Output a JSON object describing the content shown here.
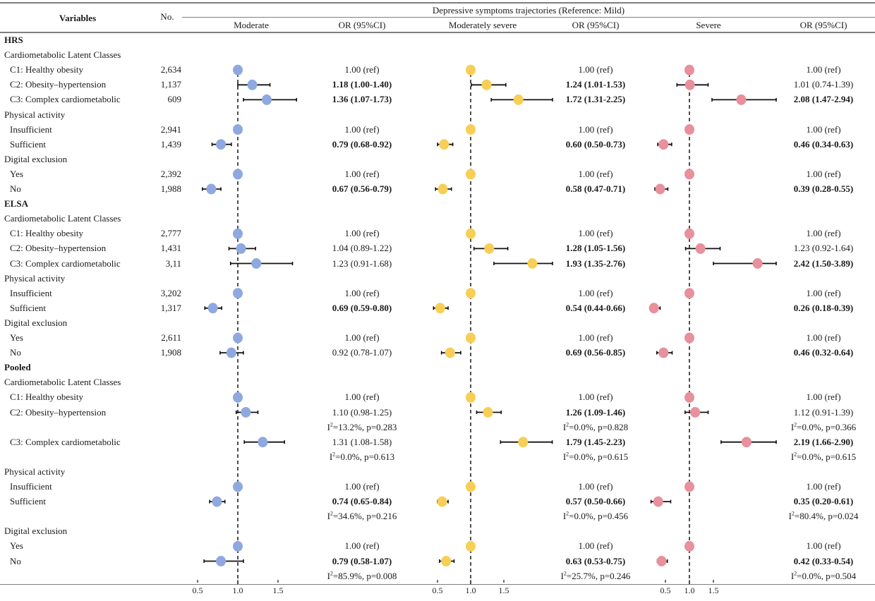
{
  "header": {
    "variables": "Variables",
    "no": "No.",
    "spanner": "Depressive symptoms trajectories (Reference: Mild)",
    "columns": [
      "Moderate",
      "OR (95%CI)",
      "Moderately severe",
      "OR (95%CI)",
      "Severe",
      "OR (95%CI)"
    ]
  },
  "colors": {
    "moderate": "#8fa9e0",
    "moderately_severe": "#f7cf56",
    "severe": "#e8909c",
    "ci": "#111111",
    "ref_line": "#222222"
  },
  "chart_data": {
    "type": "forest",
    "title": "Depressive symptoms trajectories (Reference: Mild)",
    "reference_value": 1.0,
    "panels": [
      {
        "name": "Moderate",
        "xticks": [
          "0.5",
          "1.0",
          "1.5"
        ],
        "xlim": [
          0.4,
          1.75
        ]
      },
      {
        "name": "Moderately severe",
        "xticks": [
          "0.5",
          "1.0",
          "1.5"
        ],
        "xlim": [
          0.45,
          2.2
        ]
      },
      {
        "name": "Severe",
        "xticks": [
          "0.5",
          "1.0",
          "1.5"
        ],
        "xlim": [
          0.25,
          2.8
        ]
      }
    ],
    "rows": [
      {
        "kind": "section",
        "label": "HRS"
      },
      {
        "kind": "group",
        "label": "Cardiometabolic Latent Classes"
      },
      {
        "kind": "item",
        "label": "C1: Healthy obesity",
        "n": "2,634",
        "est": [
          [
            1.0,
            1.0,
            1.0
          ],
          [
            1.0,
            1.0,
            1.0
          ],
          [
            1.0,
            1.0,
            1.0
          ]
        ],
        "or_text": [
          "1.00 (ref)",
          "1.00 (ref)",
          "1.00 (ref)"
        ],
        "bold": [
          false,
          false,
          false
        ]
      },
      {
        "kind": "item",
        "label": "C2: Obesity–hypertension",
        "n": "1,137",
        "est": [
          [
            1.18,
            1.0,
            1.4
          ],
          [
            1.24,
            1.01,
            1.53
          ],
          [
            1.01,
            0.74,
            1.39
          ]
        ],
        "or_text": [
          "1.18 (1.00-1.40)",
          "1.24 (1.01-1.53)",
          "1.01 (0.74-1.39)"
        ],
        "bold": [
          true,
          true,
          false
        ]
      },
      {
        "kind": "item",
        "label": "C3: Complex cardiometabolic",
        "n": "609",
        "est": [
          [
            1.36,
            1.07,
            1.73
          ],
          [
            1.72,
            1.31,
            2.25
          ],
          [
            2.08,
            1.47,
            2.94
          ]
        ],
        "or_text": [
          "1.36 (1.07-1.73)",
          "1.72 (1.31-2.25)",
          "2.08 (1.47-2.94)"
        ],
        "bold": [
          true,
          true,
          true
        ]
      },
      {
        "kind": "group",
        "label": "Physical activity"
      },
      {
        "kind": "item",
        "label": "Insufficient",
        "n": "2,941",
        "est": [
          [
            1.0,
            1.0,
            1.0
          ],
          [
            1.0,
            1.0,
            1.0
          ],
          [
            1.0,
            1.0,
            1.0
          ]
        ],
        "or_text": [
          "1.00 (ref)",
          "1.00 (ref)",
          "1.00 (ref)"
        ],
        "bold": [
          false,
          false,
          false
        ]
      },
      {
        "kind": "item",
        "label": "Sufficient",
        "n": "1,439",
        "est": [
          [
            0.79,
            0.68,
            0.92
          ],
          [
            0.6,
            0.5,
            0.73
          ],
          [
            0.46,
            0.34,
            0.63
          ]
        ],
        "or_text": [
          "0.79 (0.68-0.92)",
          "0.60 (0.50-0.73)",
          "0.46 (0.34-0.63)"
        ],
        "bold": [
          true,
          true,
          true
        ]
      },
      {
        "kind": "group",
        "label": "Digital exclusion"
      },
      {
        "kind": "item",
        "label": "Yes",
        "n": "2,392",
        "est": [
          [
            1.0,
            1.0,
            1.0
          ],
          [
            1.0,
            1.0,
            1.0
          ],
          [
            1.0,
            1.0,
            1.0
          ]
        ],
        "or_text": [
          "1.00 (ref)",
          "1.00 (ref)",
          "1.00 (ref)"
        ],
        "bold": [
          false,
          false,
          false
        ]
      },
      {
        "kind": "item",
        "label": "No",
        "n": "1,988",
        "est": [
          [
            0.67,
            0.56,
            0.79
          ],
          [
            0.58,
            0.47,
            0.71
          ],
          [
            0.39,
            0.28,
            0.55
          ]
        ],
        "or_text": [
          "0.67 (0.56-0.79)",
          "0.58 (0.47-0.71)",
          "0.39 (0.28-0.55)"
        ],
        "bold": [
          true,
          true,
          true
        ]
      },
      {
        "kind": "section",
        "label": "ELSA"
      },
      {
        "kind": "group",
        "label": "Cardiometabolic Latent Classes"
      },
      {
        "kind": "item",
        "label": "C1: Healthy obesity",
        "n": "2,777",
        "est": [
          [
            1.0,
            1.0,
            1.0
          ],
          [
            1.0,
            1.0,
            1.0
          ],
          [
            1.0,
            1.0,
            1.0
          ]
        ],
        "or_text": [
          "1.00 (ref)",
          "1.00 (ref)",
          "1.00 (ref)"
        ],
        "bold": [
          false,
          false,
          false
        ]
      },
      {
        "kind": "item",
        "label": "C2: Obesity–hypertension",
        "n": "1,431",
        "est": [
          [
            1.04,
            0.89,
            1.22
          ],
          [
            1.28,
            1.05,
            1.56
          ],
          [
            1.23,
            0.92,
            1.64
          ]
        ],
        "or_text": [
          "1.04 (0.89-1.22)",
          "1.28 (1.05-1.56)",
          "1.23 (0.92-1.64)"
        ],
        "bold": [
          false,
          true,
          false
        ]
      },
      {
        "kind": "item",
        "label": "C3: Complex cardiometabolic",
        "n": "3,11",
        "est": [
          [
            1.23,
            0.91,
            1.68
          ],
          [
            1.93,
            1.35,
            2.76
          ],
          [
            2.42,
            1.5,
            3.89
          ]
        ],
        "or_text": [
          "1.23 (0.91-1.68)",
          "1.93 (1.35-2.76)",
          "2.42 (1.50-3.89)"
        ],
        "bold": [
          false,
          true,
          true
        ]
      },
      {
        "kind": "group",
        "label": "Physical activity"
      },
      {
        "kind": "item",
        "label": "Insufficient",
        "n": "3,202",
        "est": [
          [
            1.0,
            1.0,
            1.0
          ],
          [
            1.0,
            1.0,
            1.0
          ],
          [
            1.0,
            1.0,
            1.0
          ]
        ],
        "or_text": [
          "1.00 (ref)",
          "1.00 (ref)",
          "1.00 (ref)"
        ],
        "bold": [
          false,
          false,
          false
        ]
      },
      {
        "kind": "item",
        "label": "Sufficient",
        "n": "1,317",
        "est": [
          [
            0.69,
            0.59,
            0.8
          ],
          [
            0.54,
            0.44,
            0.66
          ],
          [
            0.26,
            0.18,
            0.39
          ]
        ],
        "or_text": [
          "0.69 (0.59-0.80)",
          "0.54 (0.44-0.66)",
          "0.26 (0.18-0.39)"
        ],
        "bold": [
          true,
          true,
          true
        ]
      },
      {
        "kind": "group",
        "label": "Digital exclusion"
      },
      {
        "kind": "item",
        "label": "Yes",
        "n": "2,611",
        "est": [
          [
            1.0,
            1.0,
            1.0
          ],
          [
            1.0,
            1.0,
            1.0
          ],
          [
            1.0,
            1.0,
            1.0
          ]
        ],
        "or_text": [
          "1.00 (ref)",
          "1.00 (ref)",
          "1.00 (ref)"
        ],
        "bold": [
          false,
          false,
          false
        ]
      },
      {
        "kind": "item",
        "label": "No",
        "n": "1,908",
        "est": [
          [
            0.92,
            0.78,
            1.07
          ],
          [
            0.69,
            0.56,
            0.85
          ],
          [
            0.46,
            0.32,
            0.64
          ]
        ],
        "or_text": [
          "0.92 (0.78-1.07)",
          "0.69 (0.56-0.85)",
          "0.46 (0.32-0.64)"
        ],
        "bold": [
          false,
          true,
          true
        ]
      },
      {
        "kind": "section",
        "label": "Pooled"
      },
      {
        "kind": "group",
        "label": "Cardiometabolic Latent Classes"
      },
      {
        "kind": "item",
        "label": "C1: Healthy obesity",
        "n": "",
        "est": [
          [
            1.0,
            1.0,
            1.0
          ],
          [
            1.0,
            1.0,
            1.0
          ],
          [
            1.0,
            1.0,
            1.0
          ]
        ],
        "or_text": [
          "1.00 (ref)",
          "1.00 (ref)",
          "1.00 (ref)"
        ],
        "bold": [
          false,
          false,
          false
        ]
      },
      {
        "kind": "item",
        "label": "C2: Obesity–hypertension",
        "n": "",
        "est": [
          [
            1.1,
            0.98,
            1.25
          ],
          [
            1.26,
            1.09,
            1.46
          ],
          [
            1.12,
            0.91,
            1.39
          ]
        ],
        "or_text": [
          "1.10 (0.98-1.25)",
          "1.26 (1.09-1.46)",
          "1.12 (0.91-1.39)"
        ],
        "bold": [
          false,
          true,
          false
        ]
      },
      {
        "kind": "het",
        "i2": [
          "13.2%",
          "0.0%",
          "0.0%"
        ],
        "p": [
          "0.283",
          "0.828",
          "0.366"
        ]
      },
      {
        "kind": "item",
        "label": "C3: Complex cardiometabolic",
        "n": "",
        "est": [
          [
            1.31,
            1.08,
            1.58
          ],
          [
            1.79,
            1.45,
            2.23
          ],
          [
            2.19,
            1.66,
            2.9
          ]
        ],
        "or_text": [
          "1.31 (1.08-1.58)",
          "1.79 (1.45-2.23)",
          "2.19 (1.66-2.90)"
        ],
        "bold": [
          false,
          true,
          true
        ]
      },
      {
        "kind": "het",
        "i2": [
          "0.0%",
          "0.0%",
          "0.0%"
        ],
        "p": [
          "0.613",
          "0.615",
          "0.615"
        ]
      },
      {
        "kind": "group",
        "label": "Physical activity"
      },
      {
        "kind": "item",
        "label": "Insufficient",
        "n": "",
        "est": [
          [
            1.0,
            1.0,
            1.0
          ],
          [
            1.0,
            1.0,
            1.0
          ],
          [
            1.0,
            1.0,
            1.0
          ]
        ],
        "or_text": [
          "1.00 (ref)",
          "1.00 (ref)",
          "1.00 (ref)"
        ],
        "bold": [
          false,
          false,
          false
        ]
      },
      {
        "kind": "item",
        "label": "Sufficient",
        "n": "",
        "est": [
          [
            0.74,
            0.65,
            0.84
          ],
          [
            0.57,
            0.5,
            0.66
          ],
          [
            0.35,
            0.2,
            0.61
          ]
        ],
        "or_text": [
          "0.74 (0.65-0.84)",
          "0.57 (0.50-0.66)",
          "0.35 (0.20-0.61)"
        ],
        "bold": [
          true,
          true,
          true
        ]
      },
      {
        "kind": "het",
        "i2": [
          "34.6%",
          "0.0%",
          "80.4%"
        ],
        "p": [
          "0.216",
          "0.456",
          "0.024"
        ]
      },
      {
        "kind": "group",
        "label": "Digital exclusion"
      },
      {
        "kind": "item",
        "label": "Yes",
        "n": "",
        "est": [
          [
            1.0,
            1.0,
            1.0
          ],
          [
            1.0,
            1.0,
            1.0
          ],
          [
            1.0,
            1.0,
            1.0
          ]
        ],
        "or_text": [
          "1.00 (ref)",
          "1.00 (ref)",
          "1.00 (ref)"
        ],
        "bold": [
          false,
          false,
          false
        ]
      },
      {
        "kind": "item",
        "label": "No",
        "n": "",
        "est": [
          [
            0.79,
            0.58,
            1.07
          ],
          [
            0.63,
            0.53,
            0.75
          ],
          [
            0.42,
            0.33,
            0.54
          ]
        ],
        "or_text": [
          "0.79 (0.58-1.07)",
          "0.63 (0.53-0.75)",
          "0.42 (0.33-0.54)"
        ],
        "bold": [
          true,
          true,
          true
        ]
      },
      {
        "kind": "het",
        "i2": [
          "85.9%",
          "25.7%",
          "0.0%"
        ],
        "p": [
          "0.008",
          "0.246",
          "0.504"
        ]
      }
    ]
  }
}
